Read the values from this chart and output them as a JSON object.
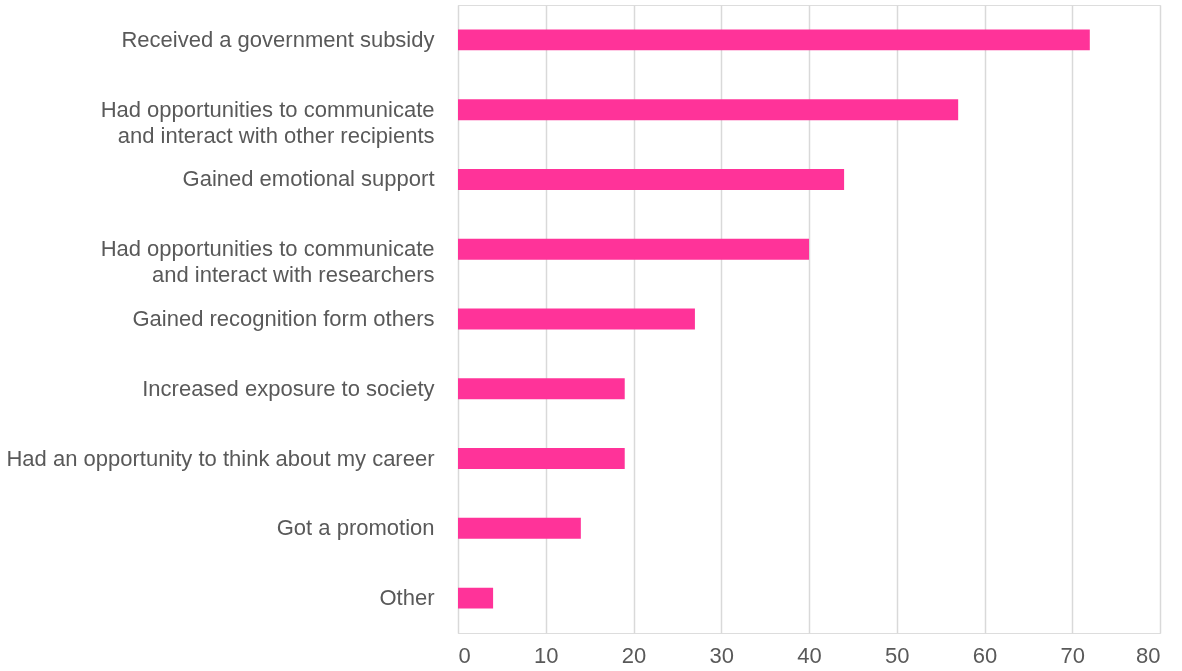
{
  "chart_data": {
    "type": "bar",
    "orientation": "horizontal",
    "categories": [
      "Received a government subsidy",
      "Had opportunities to communicate\nand interact with other recipients",
      "Gained emotional support",
      "Had opportunities to communicate\nand interact with researchers",
      "Gained recognition form others",
      "Increased exposure to society",
      "Had an opportunity to think about my career",
      "Got a promotion",
      "Other"
    ],
    "values": [
      72,
      57,
      44,
      40,
      27,
      19,
      19,
      14,
      4
    ],
    "color": "#ff3399",
    "xlim": [
      0,
      80
    ],
    "xticks": [
      0,
      10,
      20,
      30,
      40,
      50,
      60,
      70,
      80
    ],
    "grid": "x"
  }
}
